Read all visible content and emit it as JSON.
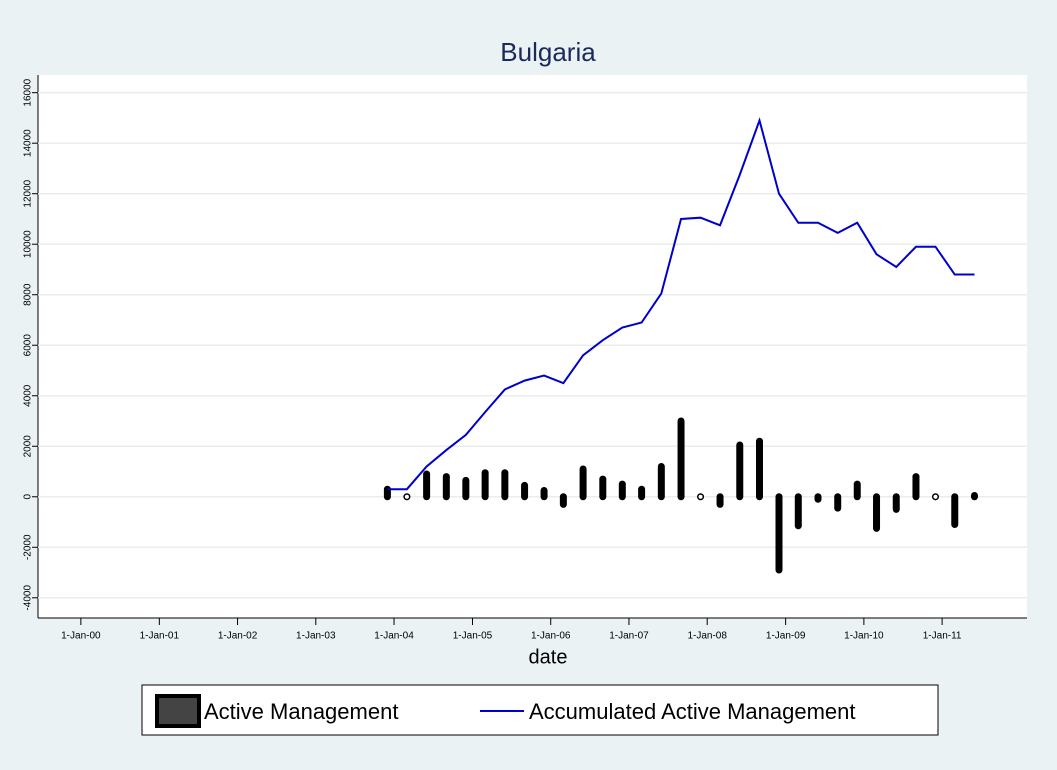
{
  "chart_data": {
    "type": "bar-line",
    "title": "Bulgaria",
    "x_label": "date",
    "x": [
      "2003-12-01",
      "2004-03-01",
      "2004-06-01",
      "2004-09-01",
      "2004-12-01",
      "2005-03-01",
      "2005-06-01",
      "2005-09-01",
      "2005-12-01",
      "2006-03-01",
      "2006-06-01",
      "2006-09-01",
      "2006-12-01",
      "2007-03-01",
      "2007-06-01",
      "2007-09-01",
      "2007-12-01",
      "2008-03-01",
      "2008-06-01",
      "2008-09-01",
      "2008-12-01",
      "2009-03-01",
      "2009-06-01",
      "2009-09-01",
      "2009-12-01",
      "2010-03-01",
      "2010-06-01",
      "2010-09-01",
      "2010-12-01",
      "2011-03-01",
      "2011-06-01"
    ],
    "series": [
      {
        "name": "Active Management",
        "color": "#000000",
        "kind": "bar",
        "values": [
          300,
          0,
          900,
          800,
          650,
          950,
          950,
          450,
          250,
          -300,
          1100,
          700,
          500,
          300,
          1200,
          3000,
          0,
          -300,
          2050,
          2200,
          -2900,
          -1150,
          -100,
          -450,
          500,
          -1250,
          -500,
          800,
          0,
          -1100,
          50
        ]
      },
      {
        "name": "Accumulated Active Management",
        "color": "#0000cc",
        "kind": "line",
        "values": [
          300,
          300,
          1200,
          1850,
          2450,
          3350,
          4250,
          4600,
          4800,
          4500,
          5600,
          6200,
          6700,
          6900,
          8050,
          11000,
          11050,
          10750,
          12750,
          14900,
          12000,
          10850,
          10850,
          10450,
          10850,
          9600,
          9100,
          9900,
          9900,
          8800,
          8800
        ]
      }
    ],
    "ylim": [
      -4800,
      16700
    ],
    "yticks": [
      -4000,
      -2000,
      0,
      2000,
      4000,
      6000,
      8000,
      10000,
      12000,
      14000,
      16000
    ],
    "xlim": [
      "1999-06-15",
      "2012-02-01"
    ],
    "xticks": [
      {
        "value": "2000-01-01",
        "label": "1-Jan-00"
      },
      {
        "value": "2001-01-01",
        "label": "1-Jan-01"
      },
      {
        "value": "2002-01-01",
        "label": "1-Jan-02"
      },
      {
        "value": "2003-01-01",
        "label": "1-Jan-03"
      },
      {
        "value": "2004-01-01",
        "label": "1-Jan-04"
      },
      {
        "value": "2005-01-01",
        "label": "1-Jan-05"
      },
      {
        "value": "2006-01-01",
        "label": "1-Jan-06"
      },
      {
        "value": "2007-01-01",
        "label": "1-Jan-07"
      },
      {
        "value": "2008-01-01",
        "label": "1-Jan-08"
      },
      {
        "value": "2009-01-01",
        "label": "1-Jan-09"
      },
      {
        "value": "2010-01-01",
        "label": "1-Jan-10"
      },
      {
        "value": "2011-01-01",
        "label": "1-Jan-11"
      }
    ],
    "grid": true,
    "legend": "bottom"
  }
}
